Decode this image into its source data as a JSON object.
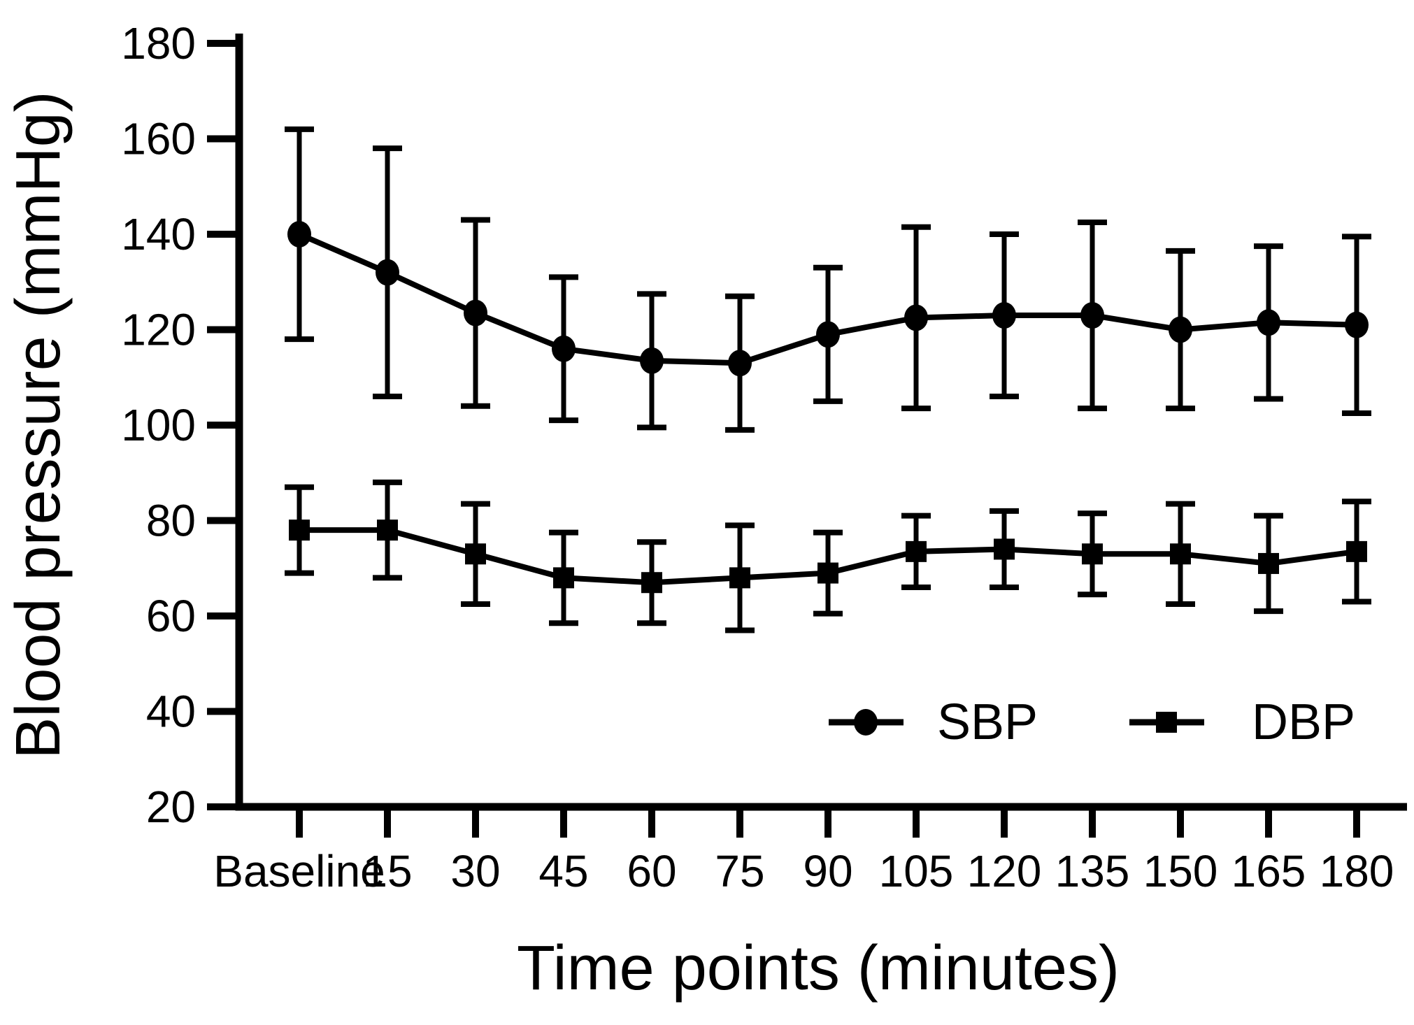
{
  "colors": {
    "foreground": "#000000",
    "background": "#ffffff"
  },
  "chart_data": {
    "type": "line",
    "title": "",
    "xlabel": "Time points (minutes)",
    "ylabel": "Blood pressure (mmHg)",
    "categories": [
      "Baseline",
      "15",
      "30",
      "45",
      "60",
      "75",
      "90",
      "105",
      "120",
      "135",
      "150",
      "165",
      "180"
    ],
    "y_axis": {
      "min": 20,
      "max": 180,
      "tick_step": 20,
      "tick_labels": [
        "20",
        "40",
        "60",
        "80",
        "100",
        "120",
        "140",
        "160",
        "180"
      ]
    },
    "grid": false,
    "error_bars": "sd",
    "legend": {
      "position": "inside-bottom-right",
      "items": [
        "SBP",
        "DBP"
      ]
    },
    "series": [
      {
        "name": "SBP",
        "marker": "circle",
        "values": [
          140,
          132,
          123.5,
          116,
          113.5,
          113,
          119,
          122.5,
          123,
          123,
          120,
          121.5,
          121
        ],
        "sd": [
          22,
          26,
          19.5,
          15,
          14,
          14,
          14,
          19,
          17,
          19.5,
          16.5,
          16,
          18.5
        ]
      },
      {
        "name": "DBP",
        "marker": "square",
        "values": [
          78,
          78,
          73,
          68,
          67,
          68,
          69,
          73.5,
          74,
          73,
          73,
          71,
          73.5
        ],
        "sd": [
          9,
          10,
          10.5,
          9.5,
          8.5,
          11,
          8.5,
          7.5,
          8,
          8.5,
          10.5,
          10,
          10.5
        ]
      }
    ]
  }
}
